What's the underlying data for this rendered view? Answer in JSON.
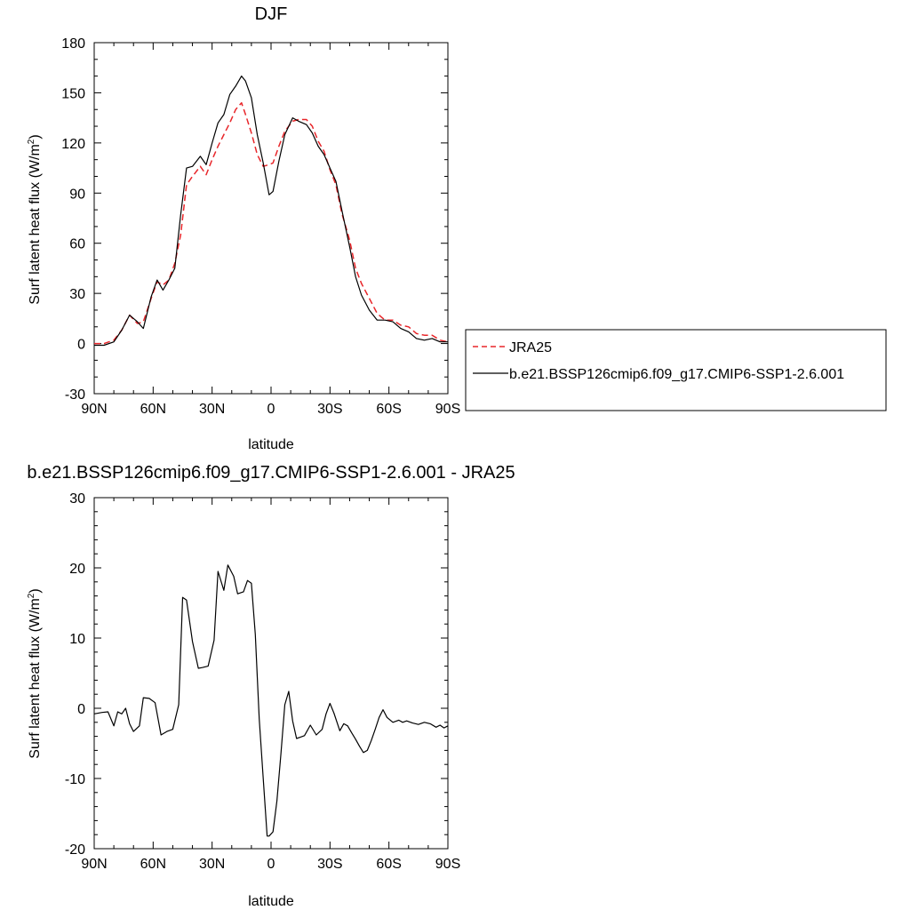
{
  "chart_data": [
    {
      "type": "line",
      "title": "DJF",
      "xlabel": "latitude",
      "ylabel": "Surf latent heat flux (W/m",
      "ylabel_sup": "2",
      "ylabel_close": ")",
      "xlim": [
        90,
        -90
      ],
      "ylim": [
        -30,
        180
      ],
      "x_ticks": [
        90,
        60,
        30,
        0,
        -30,
        -60,
        -90
      ],
      "x_tick_labels": [
        "90N",
        "60N",
        "30N",
        "0",
        "30S",
        "60S",
        "90S"
      ],
      "y_ticks": [
        -30,
        0,
        30,
        60,
        90,
        120,
        150,
        180
      ],
      "y_tick_labels": [
        "-30",
        "0",
        "30",
        "60",
        "90",
        "120",
        "150",
        "180"
      ],
      "legend_position": "right",
      "series": [
        {
          "name": "JRA25",
          "color": "#e8262a",
          "dash": "dashed",
          "x": [
            90,
            85,
            80,
            76,
            72,
            68,
            65,
            61,
            58,
            55,
            52,
            49,
            46,
            43,
            40,
            36,
            33,
            30,
            27,
            24,
            21,
            18,
            15,
            13,
            10,
            7,
            4,
            1,
            -1,
            -4,
            -7,
            -11,
            -14,
            -18,
            -21,
            -24,
            -27,
            -30,
            -33,
            -36,
            -40,
            -43,
            -46,
            -50,
            -54,
            -58,
            -62,
            -66,
            -70,
            -74,
            -78,
            -82,
            -86,
            -90
          ],
          "y": [
            0,
            0,
            2,
            8,
            17,
            12,
            13,
            27,
            37,
            35,
            38,
            48,
            65,
            95,
            100,
            106,
            101,
            110,
            118,
            125,
            132,
            140,
            144,
            137,
            126,
            113,
            106,
            107,
            108,
            118,
            127,
            133,
            134,
            134,
            130,
            121,
            115,
            104,
            95,
            78,
            62,
            45,
            36,
            27,
            18,
            14,
            14,
            11,
            10,
            6,
            5,
            5,
            2,
            1
          ]
        },
        {
          "name": "b.e21.BSSP126cmip6.f09_g17.CMIP6-SSP1-2.6.001",
          "color": "#000000",
          "dash": "solid",
          "x": [
            90,
            85,
            80,
            76,
            72,
            68,
            65,
            61,
            58,
            55,
            52,
            49,
            46,
            43,
            40,
            36,
            33,
            30,
            27,
            24,
            21,
            18,
            15,
            13,
            10,
            7,
            4,
            1,
            -1,
            -4,
            -7,
            -11,
            -14,
            -18,
            -21,
            -24,
            -27,
            -30,
            -33,
            -36,
            -40,
            -43,
            -46,
            -50,
            -54,
            -58,
            -62,
            -66,
            -70,
            -74,
            -78,
            -82,
            -86,
            -90
          ],
          "y": [
            -1,
            -1,
            1,
            8,
            17,
            13,
            9,
            28,
            38,
            32,
            38,
            45,
            77,
            105,
            106,
            112,
            107,
            120,
            132,
            137,
            149,
            154,
            160,
            157,
            147,
            125,
            108,
            89,
            91,
            109,
            125,
            135,
            133,
            131,
            126,
            118,
            113,
            105,
            97,
            80,
            58,
            40,
            29,
            20,
            14,
            14,
            13,
            9,
            7,
            3,
            2,
            3,
            1,
            1
          ]
        }
      ]
    },
    {
      "type": "line",
      "title": "b.e21.BSSP126cmip6.f09_g17.CMIP6-SSP1-2.6.001 - JRA25",
      "xlabel": "latitude",
      "ylabel": "Surf latent heat flux (W/m",
      "ylabel_sup": "2",
      "ylabel_close": ")",
      "xlim": [
        90,
        -90
      ],
      "ylim": [
        -20,
        30
      ],
      "x_ticks": [
        90,
        60,
        30,
        0,
        -30,
        -60,
        -90
      ],
      "x_tick_labels": [
        "90N",
        "60N",
        "30N",
        "0",
        "30S",
        "60S",
        "90S"
      ],
      "y_ticks": [
        -20,
        -10,
        0,
        10,
        20,
        30
      ],
      "y_tick_labels": [
        "-20",
        "-10",
        "0",
        "10",
        "20",
        "30"
      ],
      "series": [
        {
          "color": "#000000",
          "dash": "solid",
          "x": [
            90,
            86,
            83,
            80,
            78,
            76,
            74,
            72,
            70,
            67,
            65,
            62,
            59,
            56,
            53,
            50,
            47,
            45,
            43,
            40,
            37,
            35,
            32,
            29,
            27,
            24,
            22,
            19,
            17,
            14,
            12,
            10,
            8,
            6,
            4,
            2,
            1,
            -1,
            -3,
            -5,
            -7,
            -9,
            -11,
            -13,
            -15,
            -17,
            -20,
            -23,
            -26,
            -28,
            -30,
            -32,
            -35,
            -37,
            -39,
            -41,
            -43,
            -45,
            -47,
            -49,
            -51,
            -53,
            -55,
            -57,
            -59,
            -62,
            -65,
            -67,
            -69,
            -72,
            -75,
            -78,
            -81,
            -84,
            -86,
            -88,
            -90
          ],
          "y": [
            -0.8,
            -0.6,
            -0.5,
            -2.5,
            -0.5,
            -0.8,
            0,
            -2.2,
            -3.3,
            -2.5,
            1.5,
            1.4,
            0.8,
            -3.8,
            -3.3,
            -3.0,
            0.5,
            15.8,
            15.4,
            9.5,
            5.7,
            5.8,
            6.0,
            9.7,
            19.5,
            16.8,
            20.4,
            18.8,
            16.3,
            16.6,
            18.2,
            17.8,
            10.5,
            -1.5,
            -10.0,
            -18.2,
            -18.2,
            -17.6,
            -13.2,
            -6.5,
            0.5,
            2.4,
            -1.8,
            -4.3,
            -4.1,
            -3.9,
            -2.4,
            -3.8,
            -3.0,
            -0.8,
            0.7,
            -0.7,
            -3.2,
            -2.2,
            -2.5,
            -3.5,
            -4.4,
            -5.4,
            -6.3,
            -6.0,
            -4.6,
            -3.0,
            -1.3,
            -0.2,
            -1.3,
            -2.0,
            -1.7,
            -2.0,
            -1.8,
            -2.1,
            -2.3,
            -2.0,
            -2.2,
            -2.7,
            -2.4,
            -2.8,
            -2.5
          ]
        }
      ]
    }
  ]
}
